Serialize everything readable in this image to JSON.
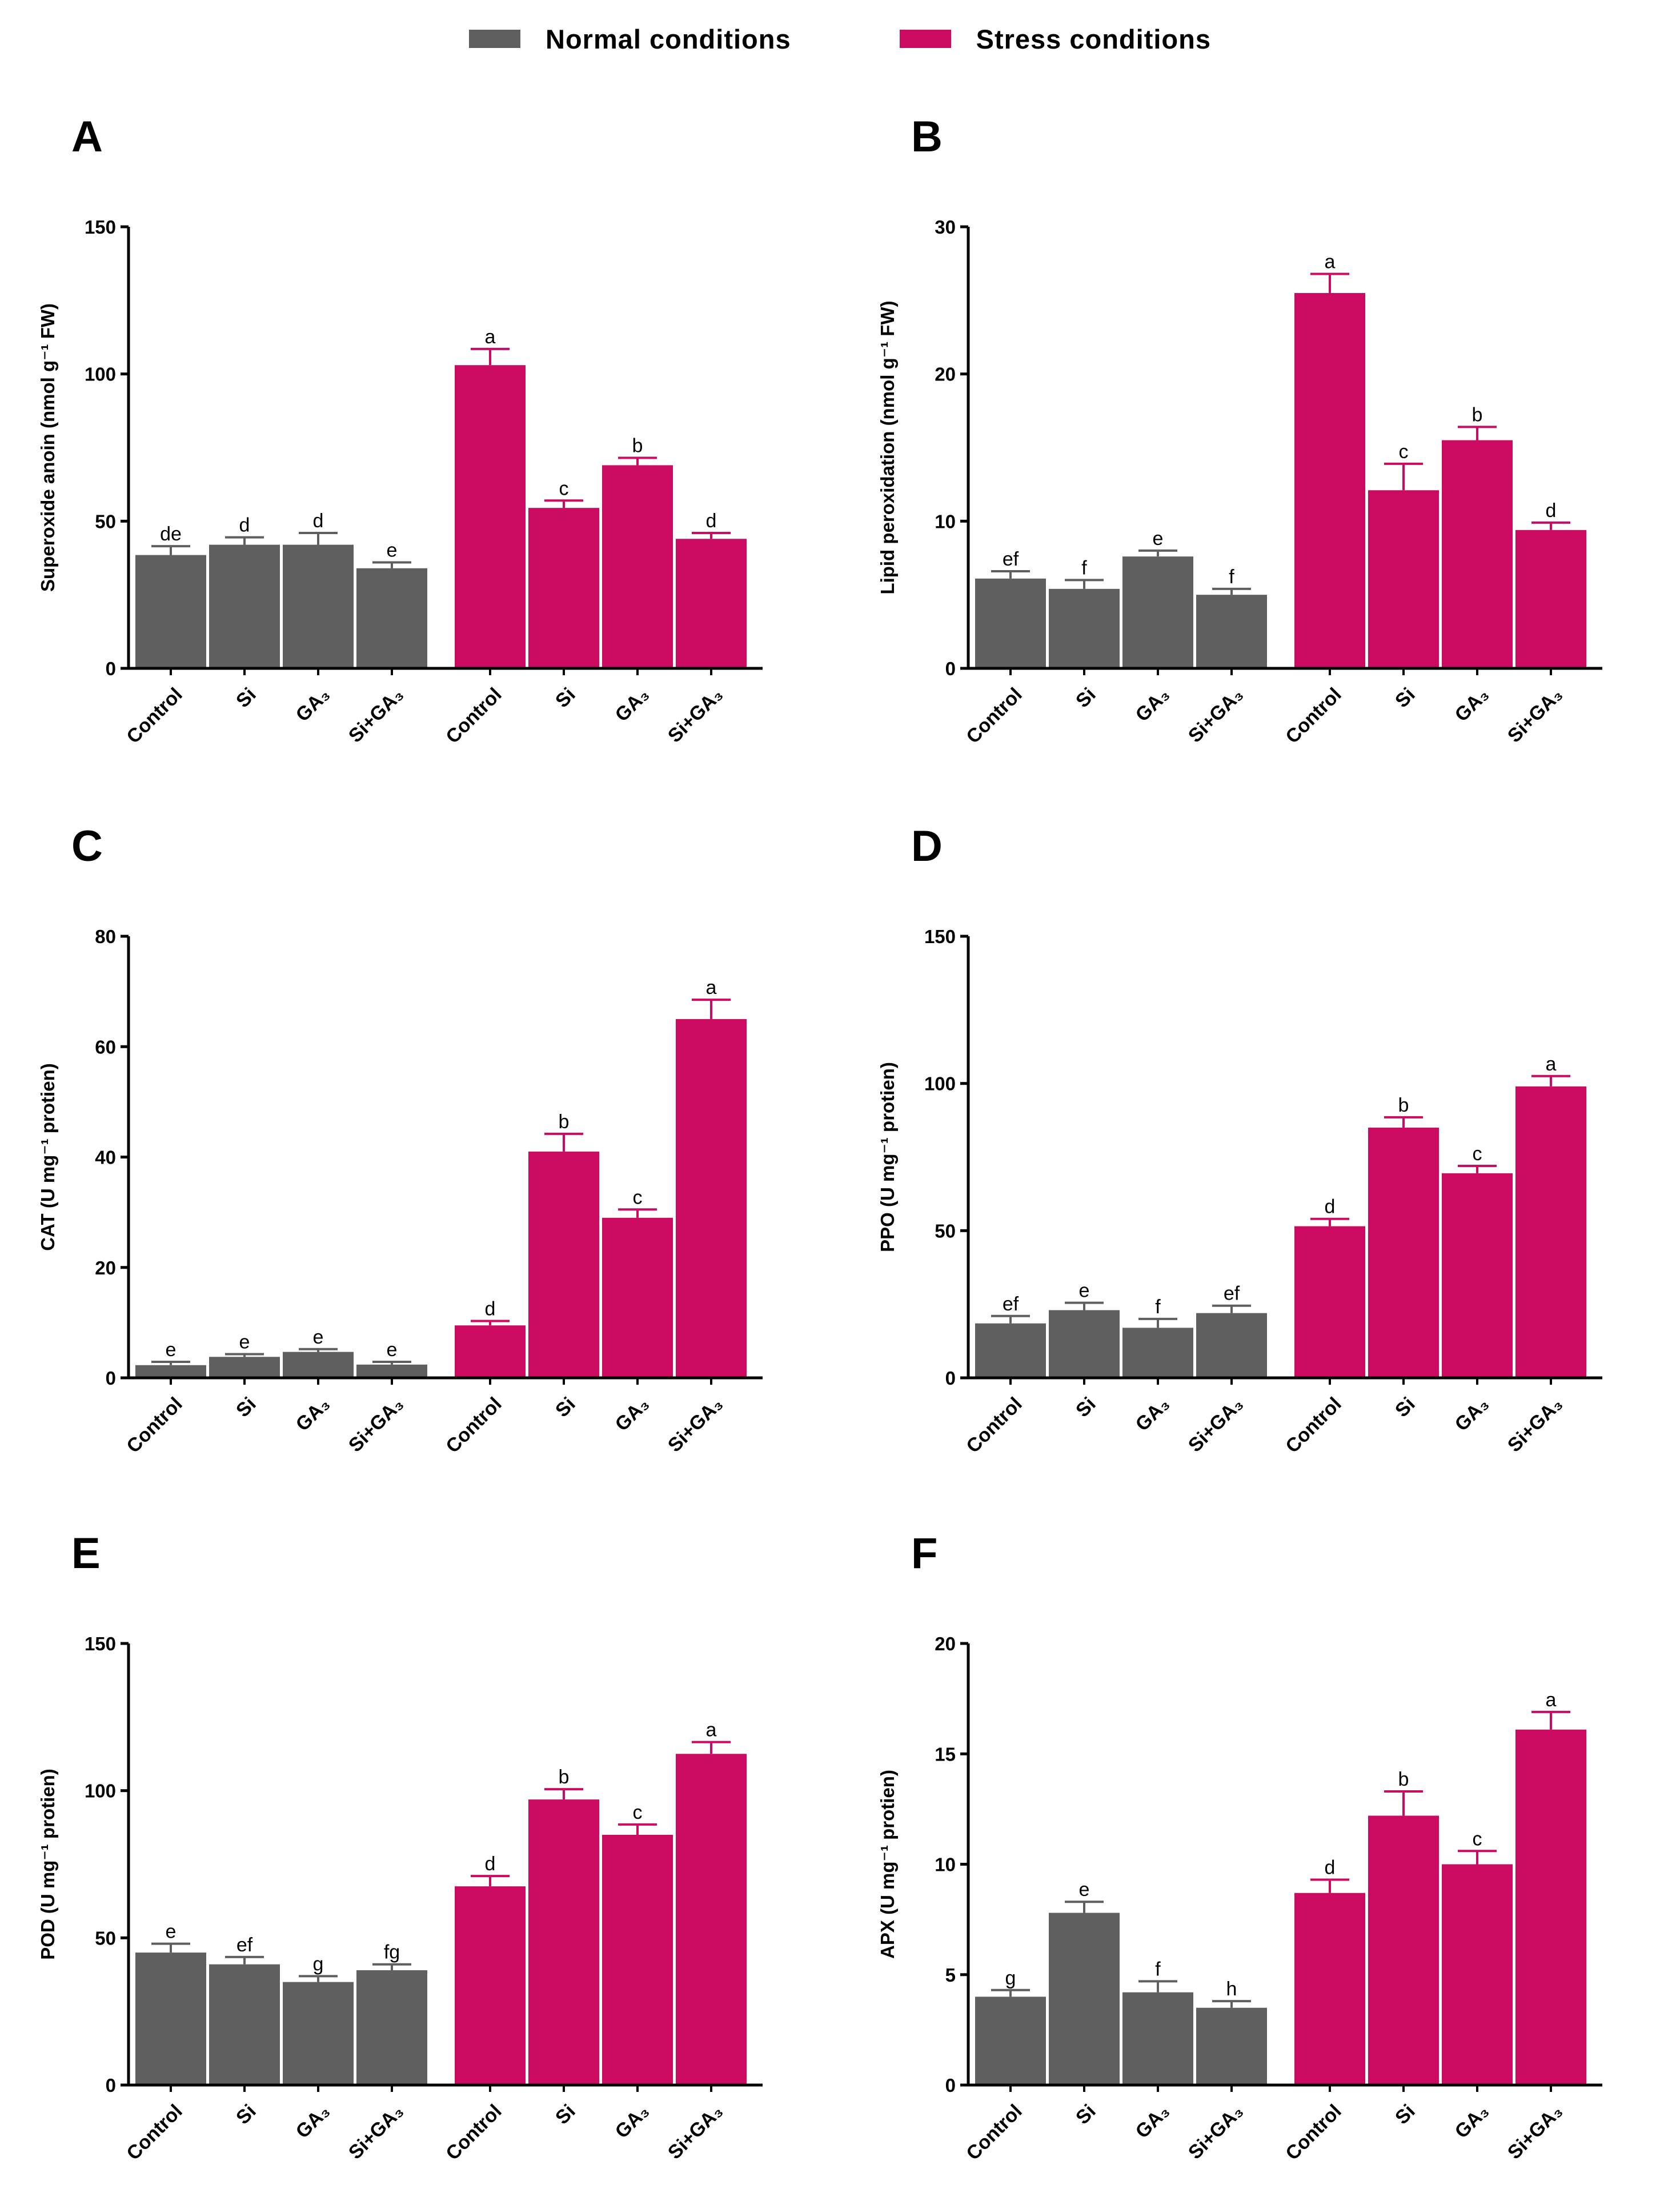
{
  "legend": [
    {
      "label": "Normal conditions",
      "color": "#5f5f5f"
    },
    {
      "label": "Stress conditions",
      "color": "#cc0a62"
    }
  ],
  "chart_data": [
    {
      "type": "bar",
      "panel": "A",
      "ylabel": "Superoxide anoin (nmol g⁻¹ FW)",
      "ylim": [
        0,
        150
      ],
      "yticks": [
        0,
        50,
        100,
        150
      ],
      "categories": [
        "Control",
        "Si",
        "GA₃",
        "Si+GA₃"
      ],
      "series": [
        {
          "name": "Normal conditions",
          "values": [
            38.5,
            42,
            42,
            34
          ],
          "errors": [
            3,
            2.5,
            4,
            2
          ],
          "letters": [
            "de",
            "d",
            "d",
            "e"
          ]
        },
        {
          "name": "Stress conditions",
          "values": [
            103,
            54.5,
            69,
            44
          ],
          "errors": [
            5.5,
            2.5,
            2.5,
            2
          ],
          "letters": [
            "a",
            "c",
            "b",
            "d"
          ]
        }
      ]
    },
    {
      "type": "bar",
      "panel": "B",
      "ylabel": "Lipid peroxidation (nmol g⁻¹ FW)",
      "ylim": [
        0,
        30
      ],
      "yticks": [
        0,
        10,
        20,
        30
      ],
      "categories": [
        "Control",
        "Si",
        "GA₃",
        "Si+GA₃"
      ],
      "series": [
        {
          "name": "Normal conditions",
          "values": [
            6.1,
            5.4,
            7.6,
            5.0
          ],
          "errors": [
            0.5,
            0.6,
            0.4,
            0.4
          ],
          "letters": [
            "ef",
            "f",
            "e",
            "f"
          ]
        },
        {
          "name": "Stress conditions",
          "values": [
            25.5,
            12.1,
            15.5,
            9.4
          ],
          "errors": [
            1.3,
            1.8,
            0.9,
            0.5
          ],
          "letters": [
            "a",
            "c",
            "b",
            "d"
          ]
        }
      ]
    },
    {
      "type": "bar",
      "panel": "C",
      "ylabel": "CAT (U mg⁻¹ protien)",
      "ylim": [
        0,
        80
      ],
      "yticks": [
        0,
        20,
        40,
        60,
        80
      ],
      "categories": [
        "Control",
        "Si",
        "GA₃",
        "Si+GA₃"
      ],
      "series": [
        {
          "name": "Normal conditions",
          "values": [
            2.3,
            3.8,
            4.7,
            2.4
          ],
          "errors": [
            0.6,
            0.5,
            0.5,
            0.5
          ],
          "letters": [
            "e",
            "e",
            "e",
            "e"
          ]
        },
        {
          "name": "Stress conditions",
          "values": [
            9.5,
            41,
            29,
            65
          ],
          "errors": [
            0.8,
            3.2,
            1.5,
            3.5
          ],
          "letters": [
            "d",
            "b",
            "c",
            "a"
          ]
        }
      ]
    },
    {
      "type": "bar",
      "panel": "D",
      "ylabel": "PPO (U mg⁻¹ protien)",
      "ylim": [
        0,
        150
      ],
      "yticks": [
        0,
        50,
        100,
        150
      ],
      "categories": [
        "Control",
        "Si",
        "GA₃",
        "Si+GA₃"
      ],
      "series": [
        {
          "name": "Normal conditions",
          "values": [
            18.5,
            23,
            17,
            22
          ],
          "errors": [
            2.5,
            2.5,
            3,
            2.5
          ],
          "letters": [
            "ef",
            "e",
            "f",
            "ef"
          ]
        },
        {
          "name": "Stress conditions",
          "values": [
            51.5,
            85,
            69.5,
            99
          ],
          "errors": [
            2.5,
            3.5,
            2.5,
            3.5
          ],
          "letters": [
            "d",
            "b",
            "c",
            "a"
          ]
        }
      ]
    },
    {
      "type": "bar",
      "panel": "E",
      "ylabel": "POD (U mg⁻¹ protien)",
      "ylim": [
        0,
        150
      ],
      "yticks": [
        0,
        50,
        100,
        150
      ],
      "categories": [
        "Control",
        "Si",
        "GA₃",
        "Si+GA₃"
      ],
      "series": [
        {
          "name": "Normal conditions",
          "values": [
            45,
            41,
            35,
            39
          ],
          "errors": [
            3,
            2.5,
            2,
            2
          ],
          "letters": [
            "e",
            "ef",
            "g",
            "fg"
          ]
        },
        {
          "name": "Stress conditions",
          "values": [
            67.5,
            97,
            85,
            112.5
          ],
          "errors": [
            3.5,
            3.5,
            3.5,
            4
          ],
          "letters": [
            "d",
            "b",
            "c",
            "a"
          ]
        }
      ]
    },
    {
      "type": "bar",
      "panel": "F",
      "ylabel": "APX (U mg⁻¹ protien)",
      "ylim": [
        0,
        20
      ],
      "yticks": [
        0,
        5,
        10,
        15,
        20
      ],
      "categories": [
        "Control",
        "Si",
        "GA₃",
        "Si+GA₃"
      ],
      "series": [
        {
          "name": "Normal conditions",
          "values": [
            4.0,
            7.8,
            4.2,
            3.5
          ],
          "errors": [
            0.3,
            0.5,
            0.5,
            0.3
          ],
          "letters": [
            "g",
            "e",
            "f",
            "h"
          ]
        },
        {
          "name": "Stress conditions",
          "values": [
            8.7,
            12.2,
            10,
            16.1
          ],
          "errors": [
            0.6,
            1.1,
            0.6,
            0.8
          ],
          "letters": [
            "d",
            "b",
            "c",
            "a"
          ]
        }
      ]
    }
  ]
}
